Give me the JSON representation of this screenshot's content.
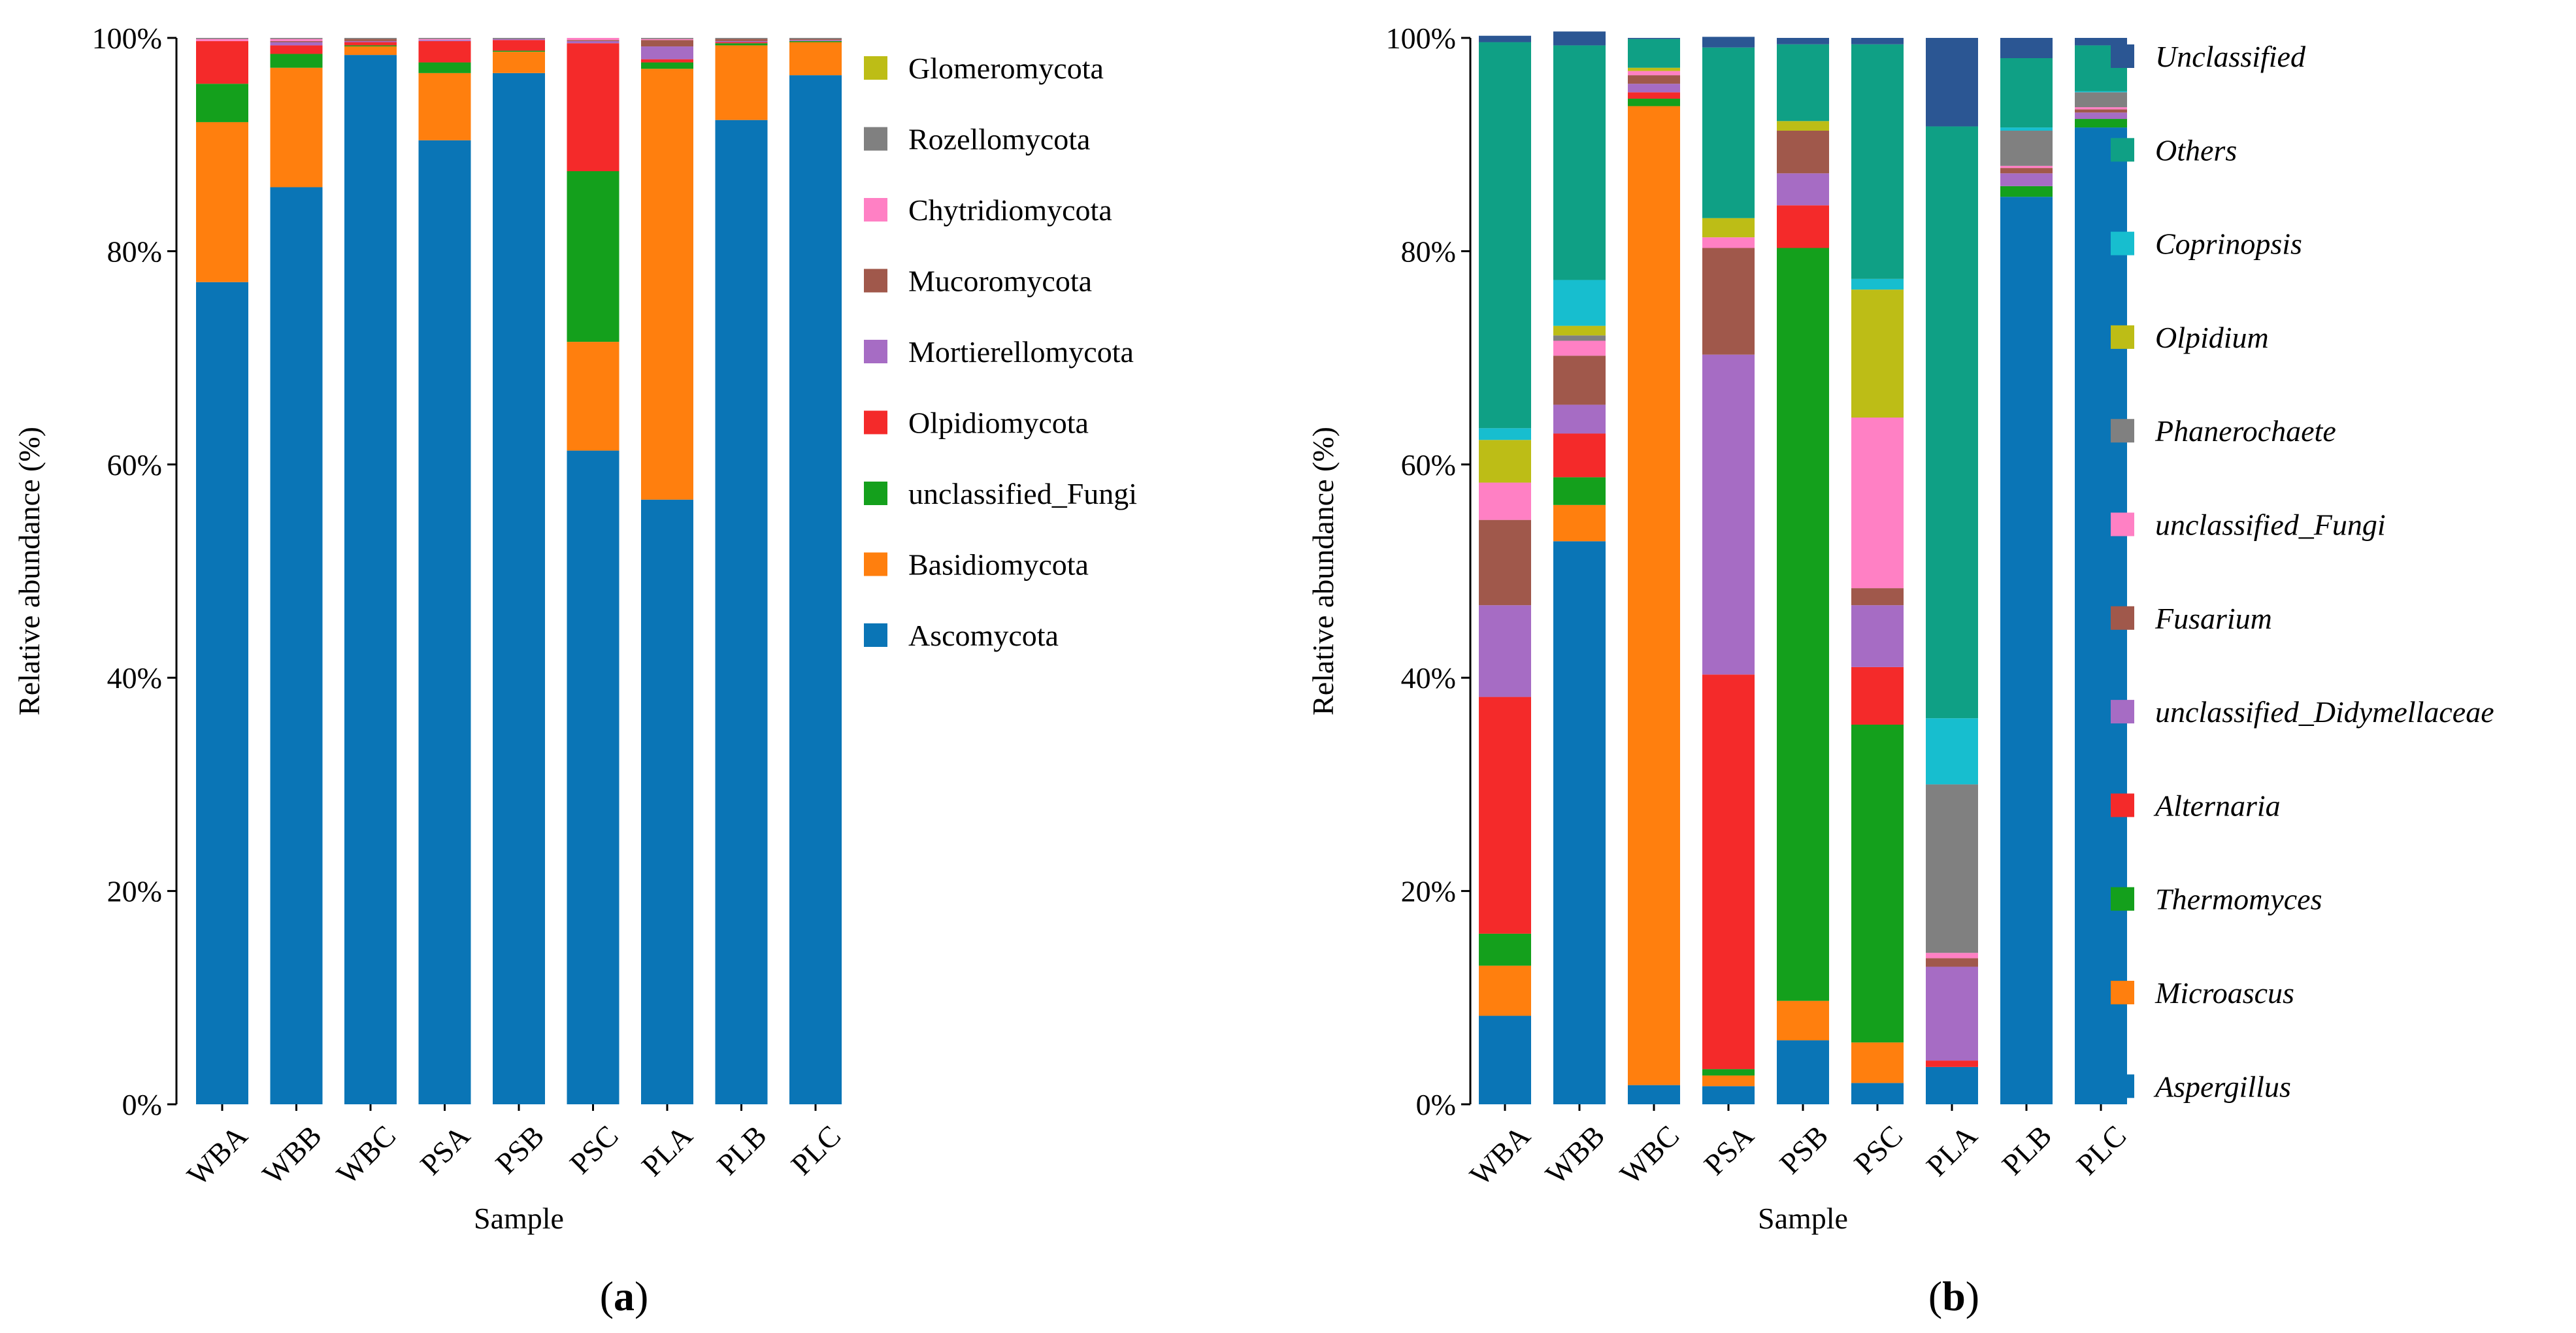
{
  "chart_data": [
    {
      "type": "bar",
      "stacked": true,
      "panel_label": "a",
      "xlabel": "Sample",
      "ylabel": "Relative abundance (%)",
      "ylim": [
        0,
        100
      ],
      "yticks": [
        "0%",
        "20%",
        "40%",
        "60%",
        "80%",
        "100%"
      ],
      "categories": [
        "WBA",
        "WBB",
        "WBC",
        "PSA",
        "PSB",
        "PSC",
        "PLA",
        "PLB",
        "PLC"
      ],
      "series": [
        {
          "name": "Ascomycota",
          "color": "#0a75b6",
          "values": [
            77.1,
            86.0,
            98.4,
            90.4,
            96.7,
            61.3,
            56.7,
            92.3,
            96.5
          ]
        },
        {
          "name": "Basidiomycota",
          "color": "#ff7f0e",
          "values": [
            15.0,
            11.2,
            0.8,
            6.3,
            2.0,
            10.2,
            40.4,
            7.0,
            3.1
          ]
        },
        {
          "name": "unclassified_Fungi",
          "color": "#14a01c",
          "values": [
            3.6,
            1.3,
            0.1,
            1.0,
            0.1,
            16.0,
            0.6,
            0.2,
            0.1
          ]
        },
        {
          "name": "Olpidiomycota",
          "color": "#f42a2a",
          "values": [
            4.0,
            0.8,
            0.3,
            2.0,
            1.0,
            12.0,
            0.3,
            0.1,
            0.0
          ]
        },
        {
          "name": "Mortierellomycota",
          "color": "#a66cc4",
          "values": [
            0.0,
            0.3,
            0.1,
            0.1,
            0.1,
            0.2,
            1.2,
            0.1,
            0.1
          ]
        },
        {
          "name": "Mucoromycota",
          "color": "#a0584b",
          "values": [
            0.0,
            0.1,
            0.2,
            0.0,
            0.0,
            0.1,
            0.6,
            0.2,
            0.1
          ]
        },
        {
          "name": "Chytridiomycota",
          "color": "#ff80c4",
          "values": [
            0.2,
            0.2,
            0.0,
            0.1,
            0.0,
            0.2,
            0.1,
            0.0,
            0.0
          ]
        },
        {
          "name": "Rozellomycota",
          "color": "#808080",
          "values": [
            0.1,
            0.1,
            0.1,
            0.1,
            0.1,
            0.0,
            0.1,
            0.1,
            0.1
          ]
        },
        {
          "name": "Glomeromycota",
          "color": "#bdbd16",
          "values": [
            0.0,
            0.0,
            0.0,
            0.0,
            0.0,
            0.0,
            0.0,
            0.0,
            0.0
          ]
        }
      ]
    },
    {
      "type": "bar",
      "stacked": true,
      "panel_label": "b",
      "xlabel": "Sample",
      "ylabel": "Relative abundance (%)",
      "ylim": [
        0,
        100
      ],
      "yticks": [
        "0%",
        "20%",
        "40%",
        "60%",
        "80%",
        "100%"
      ],
      "categories": [
        "WBA",
        "WBB",
        "WBC",
        "PSA",
        "PSB",
        "PSC",
        "PLA",
        "PLB",
        "PLC"
      ],
      "series": [
        {
          "name": "Aspergillus",
          "color": "#0a75b6",
          "values": [
            8.3,
            52.8,
            1.8,
            1.7,
            6.0,
            2.0,
            3.5,
            85.1,
            91.6
          ]
        },
        {
          "name": "Microascus",
          "color": "#ff7f0e",
          "values": [
            4.7,
            3.4,
            91.8,
            1.0,
            3.7,
            3.8,
            0.0,
            0.0,
            0.0
          ]
        },
        {
          "name": "Thermomyces",
          "color": "#14a01c",
          "values": [
            3.0,
            2.6,
            0.7,
            0.6,
            70.6,
            29.8,
            0.0,
            1.0,
            0.8
          ]
        },
        {
          "name": "Alternaria",
          "color": "#f42a2a",
          "values": [
            22.2,
            4.1,
            0.6,
            37.0,
            4.0,
            5.4,
            0.6,
            0.0,
            0.0
          ]
        },
        {
          "name": "unclassified_Didymellaceae",
          "color": "#a66cc4",
          "values": [
            8.6,
            2.7,
            0.8,
            30.0,
            3.0,
            5.8,
            8.8,
            1.2,
            0.6
          ]
        },
        {
          "name": "Fusarium",
          "color": "#a0584b",
          "values": [
            8.0,
            4.6,
            0.8,
            10.0,
            4.0,
            1.6,
            0.8,
            0.5,
            0.3
          ]
        },
        {
          "name": "unclassified_Fungi",
          "color": "#ff80c4",
          "values": [
            3.5,
            1.4,
            0.4,
            1.0,
            0.0,
            16.0,
            0.5,
            0.2,
            0.2
          ]
        },
        {
          "name": "Phanerochaete",
          "color": "#808080",
          "values": [
            0.0,
            0.5,
            0.0,
            0.0,
            0.0,
            0.0,
            15.8,
            3.3,
            1.4
          ]
        },
        {
          "name": "Olpidium",
          "color": "#bdbd16",
          "values": [
            4.0,
            0.9,
            0.3,
            1.8,
            0.9,
            12.0,
            0.0,
            0.0,
            0.0
          ]
        },
        {
          "name": "Coprinopsis",
          "color": "#17becf",
          "values": [
            1.1,
            4.3,
            0.0,
            0.0,
            0.0,
            1.0,
            6.2,
            0.3,
            0.1
          ]
        },
        {
          "name": "Others",
          "color": "#0fa085",
          "values": [
            36.2,
            22.0,
            2.7,
            16.0,
            7.2,
            22.0,
            55.5,
            6.5,
            4.3
          ]
        },
        {
          "name": "Unclassified",
          "color": "#2b5693",
          "values": [
            0.6,
            1.3,
            0.1,
            1.0,
            0.6,
            0.6,
            8.3,
            1.9,
            0.7
          ]
        }
      ]
    }
  ]
}
